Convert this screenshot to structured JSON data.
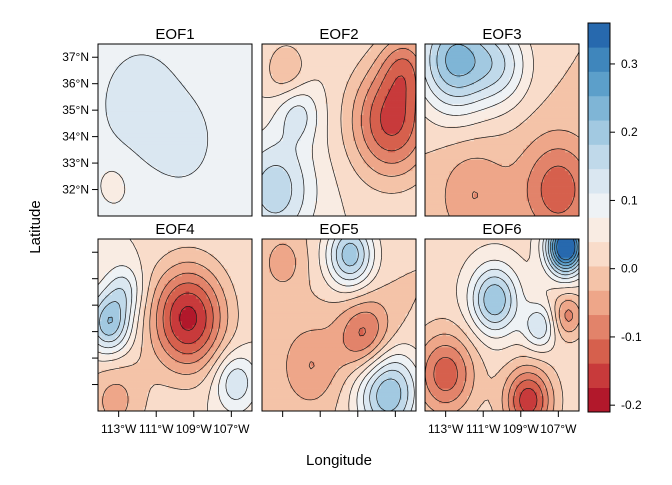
{
  "chart_data": {
    "type": "heatmap",
    "xlabel": "Longitude",
    "ylabel": "Latitude",
    "xlim": [
      -114.1,
      -105.9
    ],
    "ylim": [
      31.0,
      37.5
    ],
    "x_ticks": [
      {
        "value": -113,
        "label": "113°W"
      },
      {
        "value": -111,
        "label": "111°W"
      },
      {
        "value": -109,
        "label": "109°W"
      },
      {
        "value": -107,
        "label": "107°W"
      }
    ],
    "y_ticks": [
      {
        "value": 32,
        "label": "32°N"
      },
      {
        "value": 33,
        "label": "33°N"
      },
      {
        "value": 34,
        "label": "34°N"
      },
      {
        "value": 35,
        "label": "35°N"
      },
      {
        "value": 36,
        "label": "36°N"
      },
      {
        "value": 37,
        "label": "37°N"
      }
    ],
    "colorbar": {
      "min": -0.21,
      "max": 0.36,
      "step": 0.03,
      "ticks": [
        {
          "value": -0.2,
          "label": "-0.2"
        },
        {
          "value": -0.1,
          "label": "-0.1"
        },
        {
          "value": 0.0,
          "label": "0.0"
        },
        {
          "value": 0.1,
          "label": "0.1"
        },
        {
          "value": 0.2,
          "label": "0.2"
        },
        {
          "value": 0.3,
          "label": "0.3"
        }
      ]
    },
    "panels": [
      {
        "title": "EOF1",
        "base": 0.04,
        "features": [
          {
            "x": -111.8,
            "y": 35.2,
            "r": 1.6,
            "a": 0.04
          },
          {
            "x": -109.5,
            "y": 33.8,
            "r": 1.2,
            "a": 0.03
          },
          {
            "x": -113.2,
            "y": 32.3,
            "r": 0.8,
            "a": -0.02
          }
        ]
      },
      {
        "title": "EOF2",
        "base": 0.0,
        "features": [
          {
            "x": -113.4,
            "y": 32.0,
            "r": 1.4,
            "a": 0.11
          },
          {
            "x": -112.2,
            "y": 34.9,
            "r": 0.8,
            "a": 0.07
          },
          {
            "x": -107.2,
            "y": 34.6,
            "r": 1.5,
            "a": -0.16
          },
          {
            "x": -106.5,
            "y": 36.7,
            "r": 0.9,
            "a": -0.08
          },
          {
            "x": -112.8,
            "y": 36.5,
            "r": 0.8,
            "a": -0.06
          }
        ]
      },
      {
        "title": "EOF3",
        "base": -0.03,
        "features": [
          {
            "x": -112.5,
            "y": 36.9,
            "r": 1.4,
            "a": 0.19
          },
          {
            "x": -110.0,
            "y": 36.7,
            "r": 1.1,
            "a": 0.09
          },
          {
            "x": -107.0,
            "y": 32.0,
            "r": 1.4,
            "a": -0.11
          },
          {
            "x": -111.5,
            "y": 31.8,
            "r": 1.3,
            "a": -0.06
          }
        ]
      },
      {
        "title": "EOF4",
        "base": 0.0,
        "features": [
          {
            "x": -109.3,
            "y": 34.5,
            "r": 1.4,
            "a": -0.19
          },
          {
            "x": -113.5,
            "y": 34.3,
            "r": 0.8,
            "a": 0.15
          },
          {
            "x": -112.7,
            "y": 35.6,
            "r": 0.7,
            "a": 0.07
          },
          {
            "x": -106.8,
            "y": 32.1,
            "r": 0.8,
            "a": 0.09
          },
          {
            "x": -113.2,
            "y": 31.4,
            "r": 1.2,
            "a": -0.07
          }
        ]
      },
      {
        "title": "EOF5",
        "base": -0.03,
        "features": [
          {
            "x": -109.4,
            "y": 36.9,
            "r": 0.9,
            "a": 0.17
          },
          {
            "x": -107.4,
            "y": 31.7,
            "r": 1.2,
            "a": 0.18
          },
          {
            "x": -108.6,
            "y": 33.8,
            "r": 1.0,
            "a": -0.11
          },
          {
            "x": -111.5,
            "y": 32.7,
            "r": 1.1,
            "a": -0.06
          },
          {
            "x": -113.0,
            "y": 36.6,
            "r": 0.7,
            "a": -0.05
          }
        ]
      },
      {
        "title": "EOF6",
        "base": -0.01,
        "features": [
          {
            "x": -106.6,
            "y": 37.2,
            "r": 0.7,
            "a": 0.32
          },
          {
            "x": -110.4,
            "y": 35.2,
            "r": 0.9,
            "a": 0.16
          },
          {
            "x": -108.0,
            "y": 34.2,
            "r": 0.6,
            "a": 0.1
          },
          {
            "x": -113.0,
            "y": 32.4,
            "r": 1.1,
            "a": -0.13
          },
          {
            "x": -108.6,
            "y": 31.4,
            "r": 0.9,
            "a": -0.16
          },
          {
            "x": -106.5,
            "y": 34.6,
            "r": 0.6,
            "a": -0.09
          }
        ]
      }
    ],
    "palette": [
      "#b2182b",
      "#c83a3b",
      "#d6604d",
      "#e2836a",
      "#eea689",
      "#f4c3a8",
      "#f9dcca",
      "#f9ece3",
      "#eef2f5",
      "#dae7f1",
      "#c0d9ea",
      "#a2c9e1",
      "#7fb5d6",
      "#5c9fca",
      "#3f86bc",
      "#2769ae"
    ]
  }
}
